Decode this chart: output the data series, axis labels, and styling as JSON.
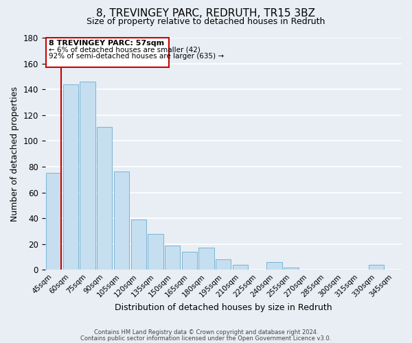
{
  "title": "8, TREVINGEY PARC, REDRUTH, TR15 3BZ",
  "subtitle": "Size of property relative to detached houses in Redruth",
  "xlabel": "Distribution of detached houses by size in Redruth",
  "ylabel": "Number of detached properties",
  "bar_labels": [
    "45sqm",
    "60sqm",
    "75sqm",
    "90sqm",
    "105sqm",
    "120sqm",
    "135sqm",
    "150sqm",
    "165sqm",
    "180sqm",
    "195sqm",
    "210sqm",
    "225sqm",
    "240sqm",
    "255sqm",
    "270sqm",
    "285sqm",
    "300sqm",
    "315sqm",
    "330sqm",
    "345sqm"
  ],
  "bar_values": [
    75,
    144,
    146,
    111,
    76,
    39,
    28,
    19,
    14,
    17,
    8,
    4,
    0,
    6,
    2,
    0,
    0,
    0,
    0,
    4,
    0
  ],
  "bar_color": "#c5dff0",
  "bar_edge_color": "#7ab3d4",
  "ylim": [
    0,
    180
  ],
  "yticks": [
    0,
    20,
    40,
    60,
    80,
    100,
    120,
    140,
    160,
    180
  ],
  "annotation_title": "8 TREVINGEY PARC: 57sqm",
  "annotation_line1": "← 6% of detached houses are smaller (42)",
  "annotation_line2": "92% of semi-detached houses are larger (635) →",
  "annotation_box_edge": "#cc0000",
  "vline_color": "#cc0000",
  "footer_line1": "Contains HM Land Registry data © Crown copyright and database right 2024.",
  "footer_line2": "Contains public sector information licensed under the Open Government Licence v3.0.",
  "background_color": "#e8eef4",
  "grid_color": "#ffffff",
  "title_fontsize": 11,
  "subtitle_fontsize": 9,
  "xlabel_fontsize": 9,
  "ylabel_fontsize": 9
}
